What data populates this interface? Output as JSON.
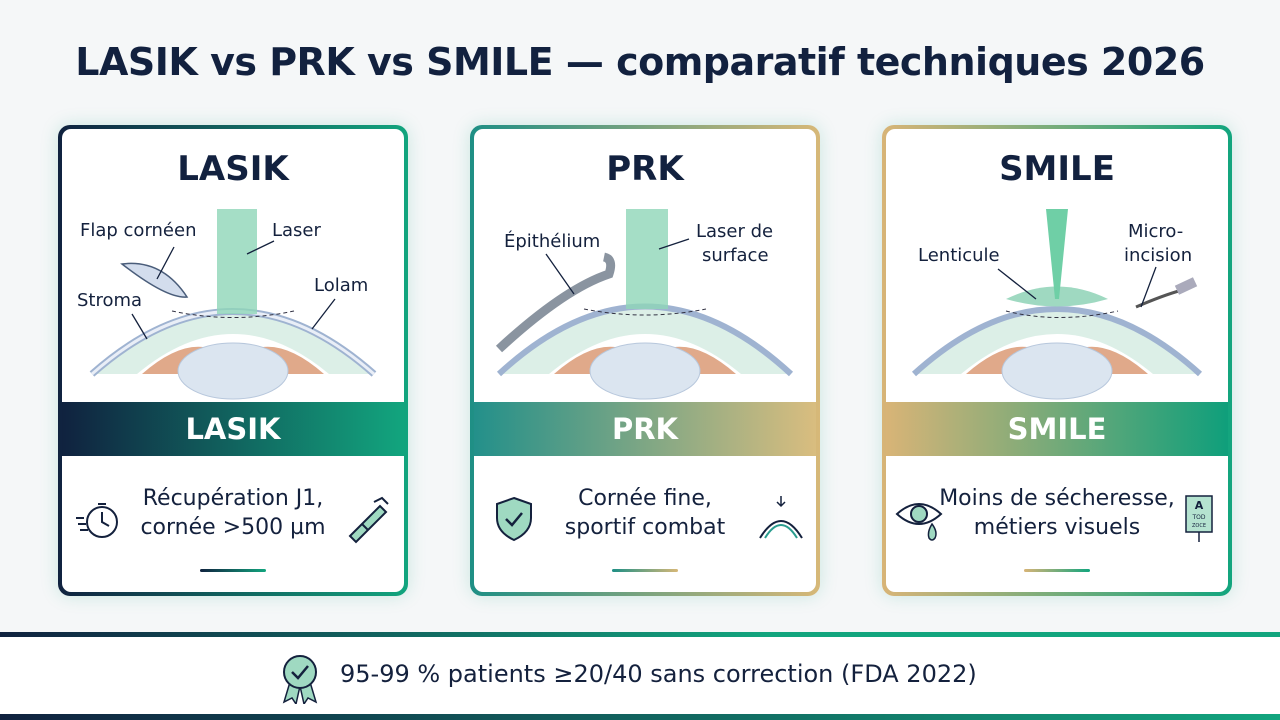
{
  "title": "LASIK vs PRK vs SMILE — comparatif techniques 2026",
  "cards": [
    {
      "title": "LASIK",
      "band": "LASIK",
      "labels": [
        "Flap cornéen",
        "Laser",
        "Stroma",
        "Lolam"
      ],
      "description": [
        "Récupération J1,",
        "cornée >500 µm"
      ],
      "icons": [
        "stopwatch-icon",
        "caliper-icon"
      ]
    },
    {
      "title": "PRK",
      "band": "PRK",
      "labels": [
        "Épithélium",
        "Laser de",
        "surface"
      ],
      "description": [
        "Cornée fine,",
        "sportif combat"
      ],
      "icons": [
        "shield-check-icon",
        "thin-cornea-icon"
      ]
    },
    {
      "title": "SMILE",
      "band": "SMILE",
      "labels": [
        "Lenticule",
        "Micro-",
        "incision"
      ],
      "description": [
        "Moins de sécheresse,",
        "métiers visuels"
      ],
      "icons": [
        "tearing-eye-icon",
        "eye-chart-icon"
      ],
      "eye_chart_letters": [
        "A",
        "TOD",
        "ZOCE"
      ]
    }
  ],
  "footer": {
    "text": "95-99 % patients ≥20/40 sans correction (FDA 2022)",
    "icon": "award-ribbon-icon"
  },
  "colors": {
    "navy": "#12213f",
    "green": "#12a57e",
    "gold": "#d8b477",
    "teal": "#1e8f85"
  }
}
